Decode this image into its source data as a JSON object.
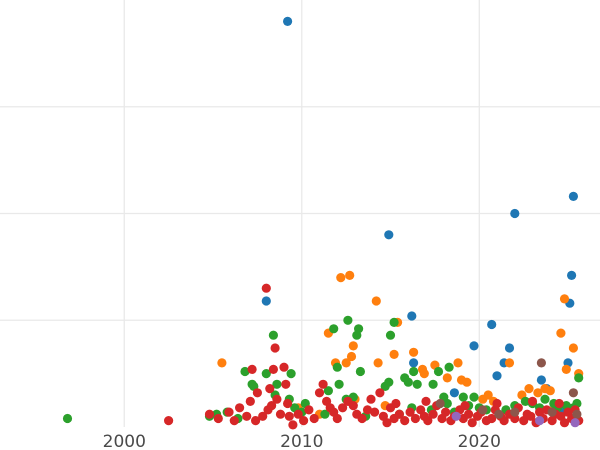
{
  "chart_data": {
    "type": "scatter",
    "title": "",
    "xlabel": "",
    "ylabel": "",
    "xlim": [
      1993.0,
      2026.8
    ],
    "ylim": [
      0,
      100
    ],
    "x_ticks": [
      2000,
      2010,
      2020
    ],
    "x_tick_labels": [
      "2000",
      "2010",
      "2020"
    ],
    "y_grid": [
      25,
      50,
      75
    ],
    "grid": true,
    "series": [
      {
        "color": "#1f77b4",
        "points": [
          [
            2009.2,
            95.0
          ],
          [
            2008.0,
            29.5
          ],
          [
            2014.9,
            45.0
          ],
          [
            2016.2,
            26.0
          ],
          [
            2016.3,
            15.0
          ],
          [
            2018.6,
            8.0
          ],
          [
            2019.7,
            19.0
          ],
          [
            2020.7,
            24.0
          ],
          [
            2021.0,
            12.0
          ],
          [
            2021.4,
            15.0
          ],
          [
            2021.7,
            18.5
          ],
          [
            2022.0,
            50.0
          ],
          [
            2023.5,
            11.0
          ],
          [
            2023.8,
            9.0
          ],
          [
            2024.6,
            4.0
          ],
          [
            2025.0,
            15.0
          ],
          [
            2025.1,
            29.0
          ],
          [
            2025.2,
            35.5
          ],
          [
            2025.3,
            54.0
          ]
        ]
      },
      {
        "color": "#ff7f0e",
        "points": [
          [
            2005.5,
            15.0
          ],
          [
            2011.5,
            22.0
          ],
          [
            2011.9,
            15.0
          ],
          [
            2012.2,
            35.0
          ],
          [
            2012.5,
            15.0
          ],
          [
            2012.7,
            35.5
          ],
          [
            2012.8,
            16.5
          ],
          [
            2012.9,
            19.0
          ],
          [
            2013.0,
            6.5
          ],
          [
            2014.2,
            29.5
          ],
          [
            2014.3,
            15.0
          ],
          [
            2014.7,
            5.0
          ],
          [
            2015.2,
            17.0
          ],
          [
            2015.4,
            24.5
          ],
          [
            2016.3,
            17.5
          ],
          [
            2016.8,
            13.5
          ],
          [
            2016.9,
            12.5
          ],
          [
            2017.5,
            14.5
          ],
          [
            2018.2,
            11.5
          ],
          [
            2018.8,
            15.0
          ],
          [
            2019.0,
            11.0
          ],
          [
            2019.3,
            10.5
          ],
          [
            2020.2,
            6.5
          ],
          [
            2020.5,
            7.5
          ],
          [
            2020.8,
            6.0
          ],
          [
            2021.7,
            15.0
          ],
          [
            2022.4,
            7.5
          ],
          [
            2022.8,
            9.0
          ],
          [
            2023.3,
            8.0
          ],
          [
            2023.7,
            9.0
          ],
          [
            2024.0,
            8.5
          ],
          [
            2024.6,
            22.0
          ],
          [
            2024.8,
            30.0
          ],
          [
            2024.9,
            13.5
          ],
          [
            2025.3,
            18.5
          ],
          [
            2025.6,
            12.5
          ],
          [
            2024.2,
            4.0
          ],
          [
            2011.0,
            3.0
          ],
          [
            2009.8,
            4.5
          ]
        ]
      },
      {
        "color": "#2ca02c",
        "points": [
          [
            1996.8,
            2.0
          ],
          [
            2004.8,
            2.5
          ],
          [
            2005.2,
            3.0
          ],
          [
            2005.8,
            3.5
          ],
          [
            2006.4,
            2.0
          ],
          [
            2006.8,
            13.0
          ],
          [
            2007.2,
            10.0
          ],
          [
            2007.3,
            9.5
          ],
          [
            2008.0,
            12.5
          ],
          [
            2008.4,
            21.5
          ],
          [
            2008.5,
            7.5
          ],
          [
            2008.6,
            10.0
          ],
          [
            2009.3,
            6.5
          ],
          [
            2009.4,
            12.5
          ],
          [
            2009.6,
            4.5
          ],
          [
            2010.2,
            5.5
          ],
          [
            2011.3,
            3.0
          ],
          [
            2011.5,
            8.5
          ],
          [
            2011.8,
            23.0
          ],
          [
            2012.0,
            14.0
          ],
          [
            2012.1,
            10.0
          ],
          [
            2012.5,
            6.5
          ],
          [
            2012.6,
            25.0
          ],
          [
            2012.9,
            7.0
          ],
          [
            2013.1,
            21.5
          ],
          [
            2013.2,
            23.0
          ],
          [
            2013.3,
            13.0
          ],
          [
            2014.7,
            9.5
          ],
          [
            2014.9,
            10.5
          ],
          [
            2015.0,
            21.5
          ],
          [
            2015.2,
            24.5
          ],
          [
            2015.8,
            11.5
          ],
          [
            2016.0,
            10.5
          ],
          [
            2016.2,
            4.5
          ],
          [
            2016.3,
            13.0
          ],
          [
            2016.5,
            10.0
          ],
          [
            2017.3,
            4.0
          ],
          [
            2017.4,
            10.0
          ],
          [
            2017.7,
            13.0
          ],
          [
            2018.0,
            7.0
          ],
          [
            2018.2,
            5.5
          ],
          [
            2018.3,
            14.0
          ],
          [
            2018.6,
            3.5
          ],
          [
            2019.1,
            7.0
          ],
          [
            2019.4,
            5.0
          ],
          [
            2019.7,
            7.0
          ],
          [
            2020.0,
            4.5
          ],
          [
            2020.4,
            4.0
          ],
          [
            2021.5,
            4.0
          ],
          [
            2022.0,
            5.0
          ],
          [
            2022.6,
            6.0
          ],
          [
            2023.0,
            5.5
          ],
          [
            2023.4,
            4.5
          ],
          [
            2023.7,
            6.5
          ],
          [
            2024.2,
            5.5
          ],
          [
            2024.4,
            4.5
          ],
          [
            2024.9,
            5.0
          ],
          [
            2025.3,
            4.5
          ],
          [
            2025.5,
            5.5
          ],
          [
            2025.6,
            11.5
          ],
          [
            2015.5,
            3.0
          ],
          [
            2010.0,
            3.5
          ],
          [
            2013.6,
            2.5
          ]
        ]
      },
      {
        "color": "#d62728",
        "points": [
          [
            2002.5,
            1.5
          ],
          [
            2004.8,
            3.0
          ],
          [
            2005.3,
            2.0
          ],
          [
            2005.9,
            3.5
          ],
          [
            2006.2,
            1.5
          ],
          [
            2006.5,
            4.5
          ],
          [
            2006.9,
            2.5
          ],
          [
            2007.1,
            6.0
          ],
          [
            2007.2,
            13.5
          ],
          [
            2007.4,
            1.5
          ],
          [
            2007.5,
            8.0
          ],
          [
            2007.8,
            2.5
          ],
          [
            2008.0,
            32.5
          ],
          [
            2008.1,
            4.0
          ],
          [
            2008.2,
            9.0
          ],
          [
            2008.3,
            5.0
          ],
          [
            2008.4,
            13.5
          ],
          [
            2008.5,
            18.5
          ],
          [
            2008.6,
            6.5
          ],
          [
            2008.8,
            3.0
          ],
          [
            2009.0,
            14.0
          ],
          [
            2009.1,
            10.0
          ],
          [
            2009.2,
            5.5
          ],
          [
            2009.3,
            2.5
          ],
          [
            2009.5,
            0.5
          ],
          [
            2009.8,
            3.0
          ],
          [
            2010.1,
            1.5
          ],
          [
            2010.4,
            4.0
          ],
          [
            2010.7,
            2.0
          ],
          [
            2011.0,
            8.0
          ],
          [
            2011.2,
            10.0
          ],
          [
            2011.4,
            6.0
          ],
          [
            2011.6,
            4.5
          ],
          [
            2011.8,
            3.5
          ],
          [
            2012.0,
            2.0
          ],
          [
            2012.3,
            4.5
          ],
          [
            2012.6,
            6.0
          ],
          [
            2012.9,
            5.0
          ],
          [
            2013.1,
            3.0
          ],
          [
            2013.4,
            2.0
          ],
          [
            2013.7,
            4.0
          ],
          [
            2013.9,
            6.5
          ],
          [
            2014.1,
            3.5
          ],
          [
            2014.4,
            8.0
          ],
          [
            2014.6,
            2.5
          ],
          [
            2014.8,
            1.0
          ],
          [
            2015.0,
            4.5
          ],
          [
            2015.2,
            2.0
          ],
          [
            2015.5,
            3.0
          ],
          [
            2015.8,
            1.5
          ],
          [
            2016.1,
            3.5
          ],
          [
            2016.4,
            2.0
          ],
          [
            2016.7,
            4.0
          ],
          [
            2016.9,
            2.5
          ],
          [
            2017.1,
            1.5
          ],
          [
            2017.4,
            3.0
          ],
          [
            2017.6,
            5.0
          ],
          [
            2017.9,
            2.0
          ],
          [
            2018.1,
            3.5
          ],
          [
            2018.4,
            1.5
          ],
          [
            2018.6,
            2.5
          ],
          [
            2018.9,
            4.0
          ],
          [
            2019.1,
            2.0
          ],
          [
            2019.4,
            3.0
          ],
          [
            2019.6,
            1.0
          ],
          [
            2019.9,
            2.5
          ],
          [
            2020.1,
            3.5
          ],
          [
            2020.4,
            1.5
          ],
          [
            2020.7,
            2.0
          ],
          [
            2020.9,
            4.0
          ],
          [
            2021.2,
            2.5
          ],
          [
            2021.4,
            1.5
          ],
          [
            2021.7,
            3.0
          ],
          [
            2022.0,
            2.0
          ],
          [
            2022.2,
            4.5
          ],
          [
            2022.5,
            1.5
          ],
          [
            2022.7,
            3.0
          ],
          [
            2022.9,
            2.5
          ],
          [
            2023.2,
            1.0
          ],
          [
            2023.4,
            3.5
          ],
          [
            2023.6,
            2.0
          ],
          [
            2023.8,
            4.0
          ],
          [
            2024.1,
            1.5
          ],
          [
            2024.3,
            3.0
          ],
          [
            2024.6,
            2.5
          ],
          [
            2024.8,
            1.0
          ],
          [
            2025.0,
            3.5
          ],
          [
            2025.2,
            2.0
          ],
          [
            2025.4,
            4.0
          ],
          [
            2025.6,
            1.5
          ],
          [
            2015.3,
            5.5
          ],
          [
            2017.0,
            6.0
          ],
          [
            2019.2,
            5.0
          ],
          [
            2021.0,
            5.5
          ],
          [
            2023.0,
            6.0
          ],
          [
            2024.5,
            5.5
          ]
        ]
      },
      {
        "color": "#8c564b",
        "points": [
          [
            2017.8,
            5.5
          ],
          [
            2020.2,
            4.0
          ],
          [
            2021.1,
            3.0
          ],
          [
            2022.0,
            3.5
          ],
          [
            2023.5,
            15.0
          ],
          [
            2024.1,
            3.5
          ],
          [
            2025.3,
            8.0
          ],
          [
            2025.5,
            3.0
          ]
        ]
      },
      {
        "color": "#9467bd",
        "points": [
          [
            2018.7,
            2.5
          ],
          [
            2023.4,
            1.5
          ],
          [
            2025.4,
            1.0
          ]
        ]
      }
    ]
  }
}
